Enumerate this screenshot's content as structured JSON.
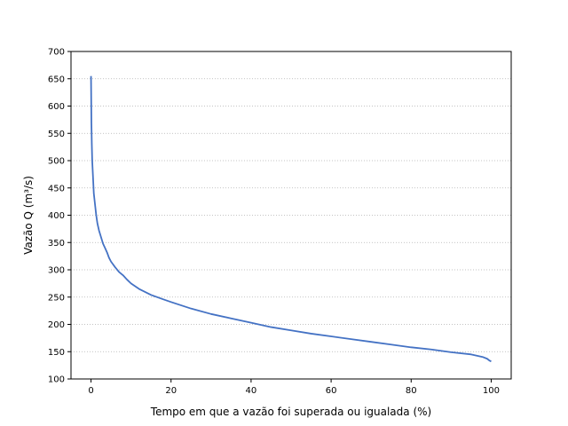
{
  "chart_data": {
    "type": "line",
    "title": "",
    "xlabel": "Tempo em que a vazão foi superada ou igualada (%)",
    "ylabel": "Vazão Q (m³/s)",
    "xlim": [
      -5,
      105
    ],
    "ylim": [
      100,
      700
    ],
    "xticks": [
      "0",
      "20",
      "40",
      "60",
      "80",
      "100"
    ],
    "yticks": [
      "100",
      "150",
      "200",
      "250",
      "300",
      "350",
      "400",
      "450",
      "500",
      "550",
      "600",
      "650",
      "700"
    ],
    "grid": "horizontal dotted",
    "legend": "none",
    "series": [
      {
        "color": "#4472c4",
        "x": [
          0,
          0.1,
          0.2,
          0.3,
          0.5,
          0.7,
          1.0,
          1.3,
          1.6,
          2.0,
          2.5,
          3.0,
          3.5,
          4.0,
          4.5,
          5.0,
          6.0,
          7.0,
          8.0,
          9.0,
          10.0,
          12.0,
          15.0,
          18.0,
          20.0,
          25.0,
          30.0,
          35.0,
          40.0,
          45.0,
          50.0,
          55.0,
          60.0,
          65.0,
          70.0,
          75.0,
          80.0,
          85.0,
          90.0,
          95.0,
          98.0,
          99.0,
          99.5,
          100.0
        ],
        "y": [
          655,
          570,
          530,
          500,
          470,
          440,
          420,
          400,
          385,
          372,
          360,
          348,
          340,
          332,
          322,
          315,
          305,
          296,
          290,
          282,
          275,
          265,
          254,
          246,
          241,
          229,
          219,
          211,
          203,
          195,
          189,
          183,
          178,
          173,
          168,
          163,
          158,
          154,
          149,
          145,
          140,
          137,
          134,
          132
        ]
      }
    ]
  }
}
